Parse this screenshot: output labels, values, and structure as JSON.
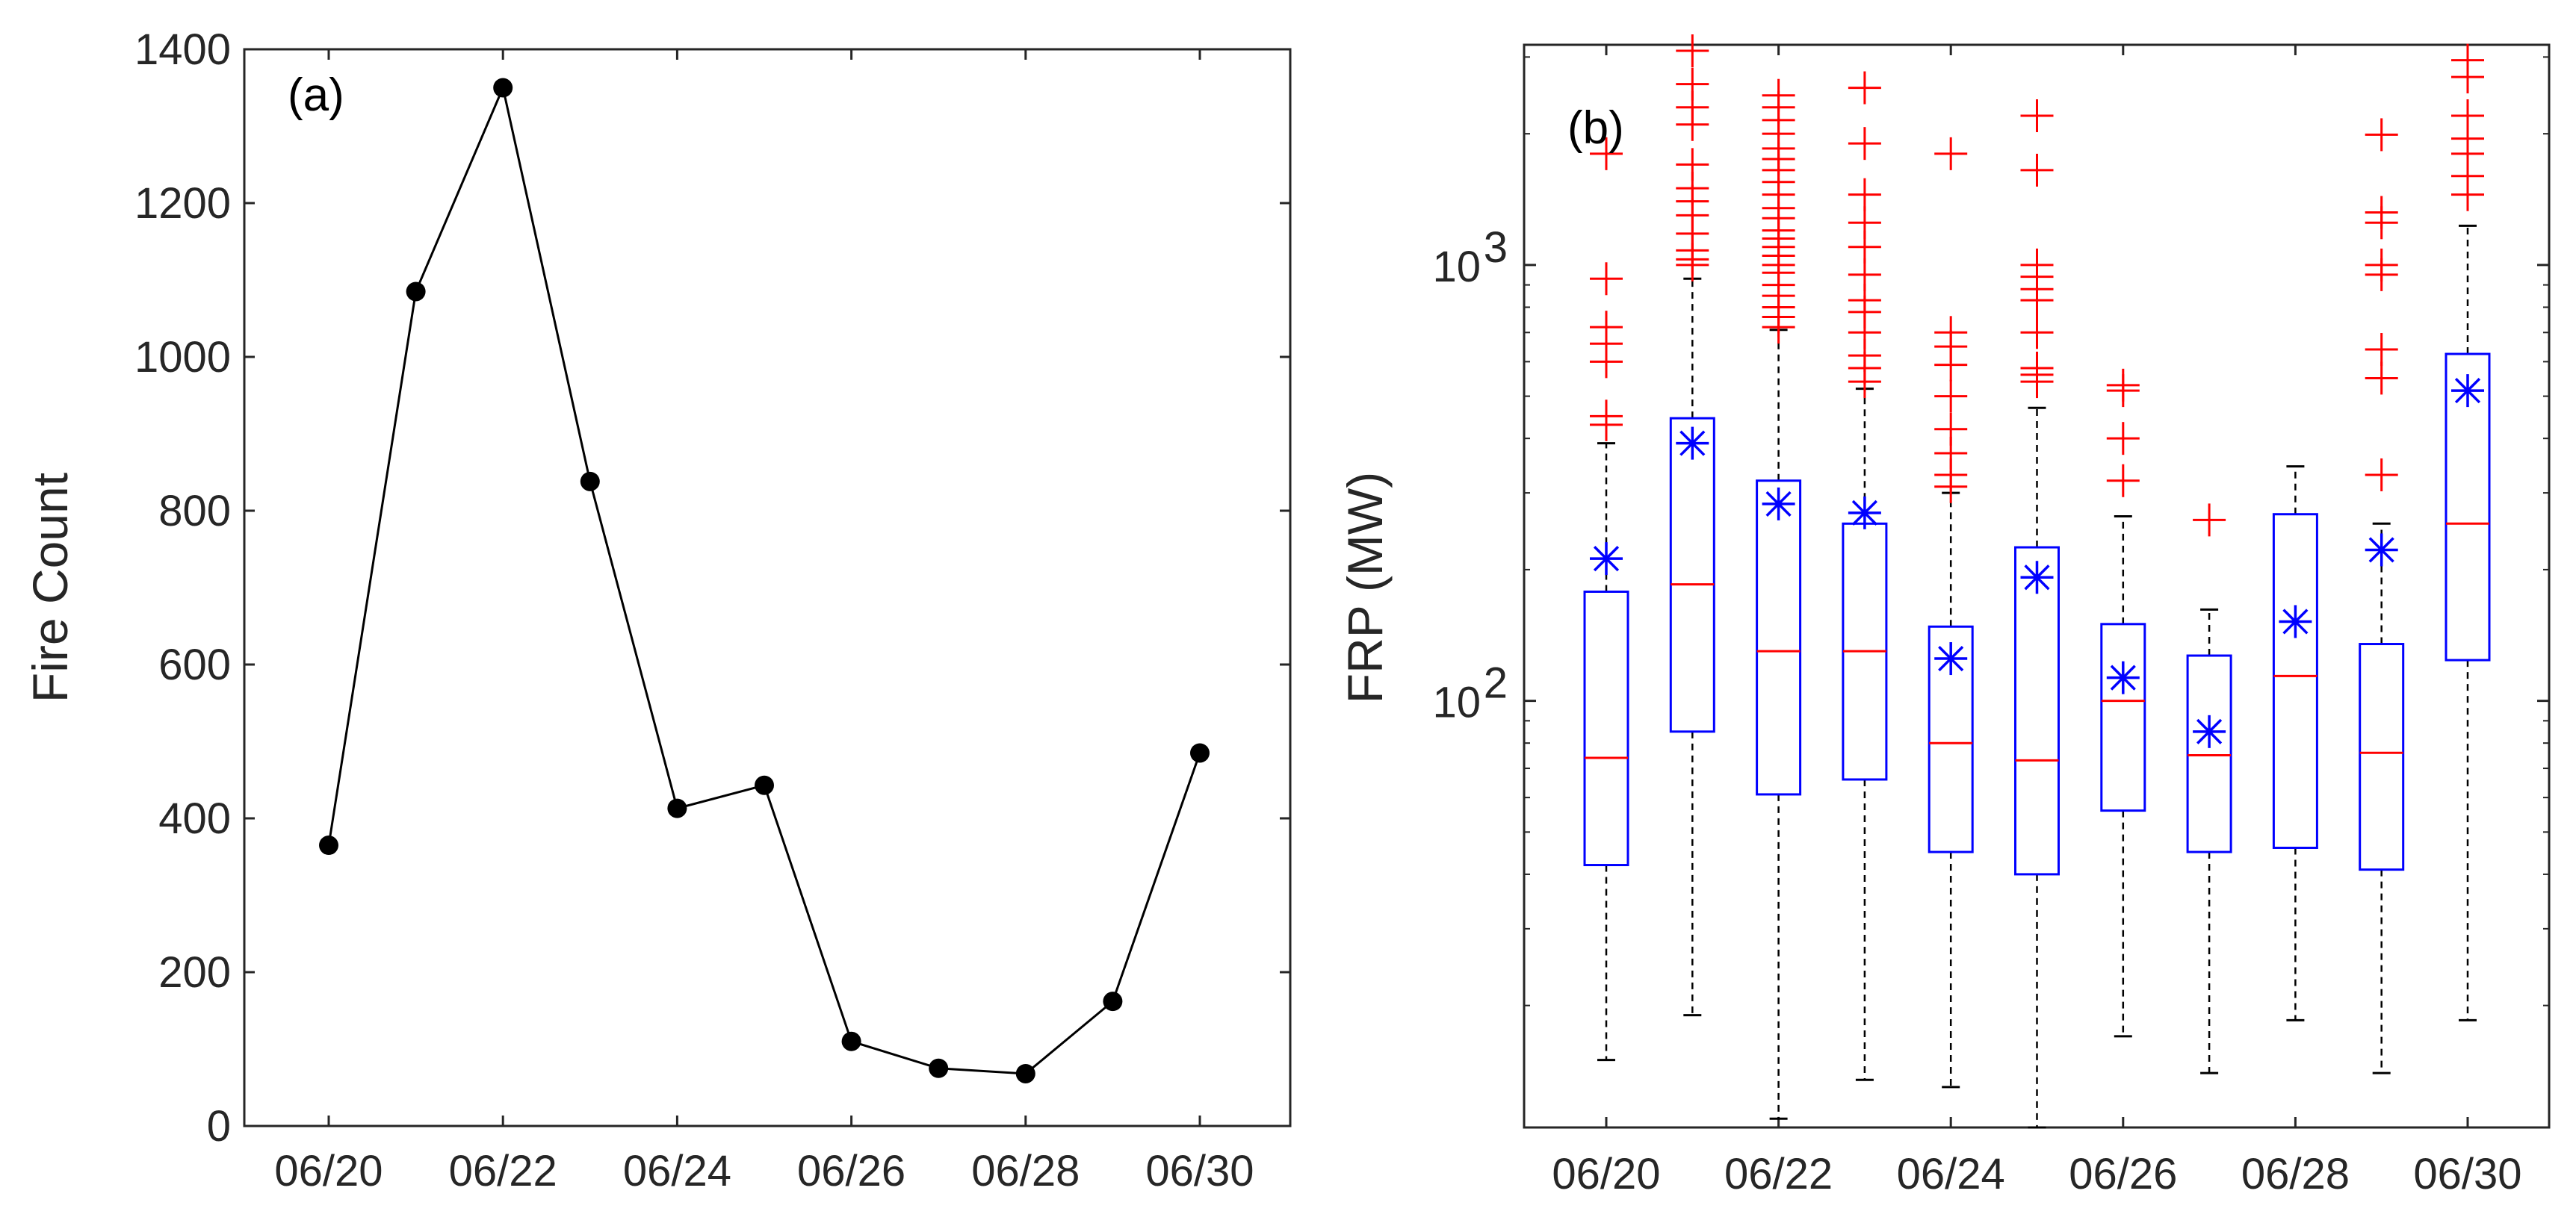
{
  "colors": {
    "line": "#000000",
    "box": "#0000ff",
    "median": "#ff0000",
    "outlier": "#ff0000",
    "mean": "#0000ff",
    "whisker": "#000000",
    "axis": "#262626"
  },
  "chart_data": [
    {
      "type": "line",
      "panel_label": "(a)",
      "title": "",
      "xlabel": "",
      "ylabel": "Fire Count",
      "x": [
        "06/20",
        "06/21",
        "06/22",
        "06/23",
        "06/24",
        "06/25",
        "06/26",
        "06/27",
        "06/28",
        "06/29",
        "06/30"
      ],
      "values": [
        365,
        1085,
        1350,
        838,
        413,
        443,
        110,
        75,
        68,
        162,
        485
      ],
      "x_tick_labels": [
        "06/20",
        "06/22",
        "06/24",
        "06/26",
        "06/28",
        "06/30"
      ],
      "ylim": [
        0,
        1400
      ],
      "y_ticks": [
        0,
        200,
        400,
        600,
        800,
        1000,
        1200,
        1400
      ],
      "y_tick_labels": [
        "0",
        "200",
        "400",
        "600",
        "800",
        "1000",
        "1200",
        "1400"
      ],
      "marker": "filled-circle",
      "grid": false
    },
    {
      "type": "boxplot",
      "panel_label": "(b)",
      "title": "",
      "xlabel": "",
      "ylabel": "FRP (MW)",
      "yscale": "log",
      "ylim": [
        10.5,
        3200
      ],
      "y_ticks": [
        100,
        1000
      ],
      "y_tick_labels": [
        {
          "base": "10",
          "exp": "2"
        },
        {
          "base": "10",
          "exp": "3"
        }
      ],
      "x_tick_labels": [
        "06/20",
        "06/22",
        "06/24",
        "06/26",
        "06/28",
        "06/30"
      ],
      "grid": false,
      "boxes": [
        {
          "label": "06/20",
          "whisker_low": 15,
          "q1": 42,
          "median": 74,
          "q3": 178,
          "whisker_high": 390,
          "mean": 212,
          "outliers": [
            430,
            450,
            600,
            660,
            720,
            930,
            1800
          ]
        },
        {
          "label": "06/21",
          "whisker_low": 19,
          "q1": 85,
          "median": 185,
          "q3": 445,
          "whisker_high": 930,
          "mean": 390,
          "outliers": [
            1000,
            1030,
            1080,
            1180,
            1300,
            1400,
            1500,
            1700,
            2100,
            2300,
            2600,
            3100
          ]
        },
        {
          "label": "06/22",
          "whisker_low": 11,
          "q1": 61,
          "median": 130,
          "q3": 320,
          "whisker_high": 710,
          "mean": 283,
          "outliers": [
            720,
            760,
            800,
            850,
            900,
            960,
            1000,
            1050,
            1100,
            1150,
            1200,
            1280,
            1350,
            1450,
            1550,
            1650,
            1750,
            1850,
            2000,
            2150,
            2300,
            2450
          ]
        },
        {
          "label": "06/23",
          "whisker_low": 13.5,
          "q1": 66,
          "median": 130,
          "q3": 255,
          "whisker_high": 520,
          "mean": 270,
          "outliers": [
            540,
            580,
            620,
            700,
            780,
            830,
            950,
            1100,
            1250,
            1450,
            1900,
            2550
          ]
        },
        {
          "label": "06/24",
          "whisker_low": 13,
          "q1": 45,
          "median": 80,
          "q3": 148,
          "whisker_high": 300,
          "mean": 125,
          "outliers": [
            310,
            330,
            370,
            420,
            500,
            590,
            650,
            700,
            1800
          ]
        },
        {
          "label": "06/25",
          "whisker_low": 10.5,
          "q1": 40,
          "median": 73,
          "q3": 225,
          "whisker_high": 470,
          "mean": 192,
          "outliers": [
            540,
            560,
            580,
            700,
            830,
            880,
            940,
            1000,
            1650,
            2200
          ]
        },
        {
          "label": "06/26",
          "whisker_low": 17,
          "q1": 56,
          "median": 100,
          "q3": 150,
          "whisker_high": 265,
          "mean": 113,
          "outliers": [
            320,
            400,
            515,
            530
          ]
        },
        {
          "label": "06/27",
          "whisker_low": 14,
          "q1": 45,
          "median": 75,
          "q3": 127,
          "whisker_high": 162,
          "mean": 85,
          "outliers": [
            260
          ]
        },
        {
          "label": "06/28",
          "whisker_low": 18.5,
          "q1": 46,
          "median": 114,
          "q3": 268,
          "whisker_high": 345,
          "mean": 152,
          "outliers": []
        },
        {
          "label": "06/29",
          "whisker_low": 14,
          "q1": 41,
          "median": 76,
          "q3": 135,
          "whisker_high": 255,
          "mean": 222,
          "outliers": [
            330,
            550,
            640,
            950,
            1000,
            1250,
            1320,
            1990
          ]
        },
        {
          "label": "06/30",
          "whisker_low": 18.5,
          "q1": 124,
          "median": 255,
          "q3": 625,
          "whisker_high": 1230,
          "mean": 515,
          "outliers": [
            1450,
            1600,
            1800,
            1950,
            2200,
            2700,
            2950
          ]
        }
      ]
    }
  ]
}
